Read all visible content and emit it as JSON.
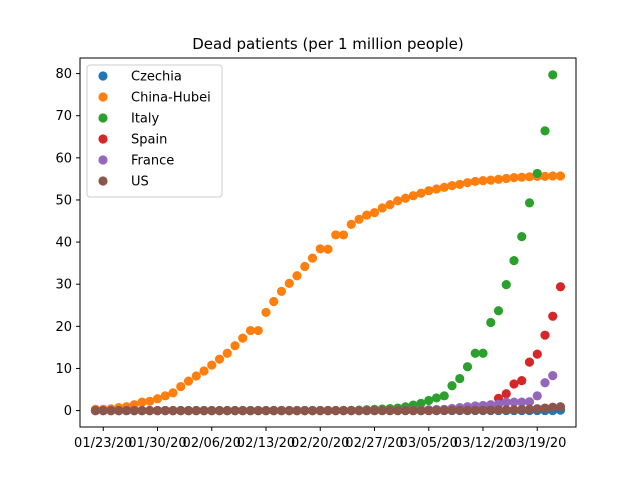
{
  "chart_data": {
    "type": "scatter",
    "title": "Dead patients (per 1 million people)",
    "xlabel": "",
    "ylabel": "",
    "grid": false,
    "legend_position": "top-left",
    "x_start": "2020-01-22",
    "x_tick_labels": [
      "01/23/20",
      "01/30/20",
      "02/06/20",
      "02/13/20",
      "02/20/20",
      "02/27/20",
      "03/05/20",
      "03/12/20",
      "03/19/20"
    ],
    "x_tick_dates": [
      "2020-01-23",
      "2020-01-30",
      "2020-02-06",
      "2020-02-13",
      "2020-02-20",
      "2020-02-27",
      "2020-03-05",
      "2020-03-12",
      "2020-03-19"
    ],
    "x_range": [
      "2020-01-20",
      "2020-03-24"
    ],
    "y_ticks": [
      0,
      10,
      20,
      30,
      40,
      50,
      60,
      70,
      80
    ],
    "ylim": [
      -3.9,
      83.7
    ],
    "series": [
      {
        "name": "Czechia",
        "color": "#1f77b4",
        "values": [
          0,
          0,
          0,
          0,
          0,
          0,
          0,
          0,
          0,
          0,
          0,
          0,
          0,
          0,
          0,
          0,
          0,
          0,
          0,
          0,
          0,
          0,
          0,
          0,
          0,
          0,
          0,
          0,
          0,
          0,
          0,
          0,
          0,
          0,
          0,
          0,
          0,
          0,
          0,
          0,
          0,
          0,
          0,
          0,
          0,
          0,
          0,
          0,
          0,
          0,
          0,
          0,
          0,
          0,
          0,
          0,
          0,
          0,
          0,
          0,
          0.1
        ]
      },
      {
        "name": "China-Hubei",
        "color": "#ff7f0e",
        "values": [
          0.3,
          0.3,
          0.4,
          0.7,
          0.9,
          1.4,
          2,
          2.2,
          2.8,
          3.5,
          4.2,
          5.7,
          7,
          8.2,
          9.4,
          10.8,
          12.2,
          13.6,
          15.4,
          17.2,
          19,
          19,
          23.3,
          25.9,
          28.3,
          30.2,
          32,
          34.2,
          36.2,
          38.4,
          38.3,
          41.7,
          41.7,
          44.2,
          45.4,
          46.4,
          47,
          48.1,
          48.9,
          49.8,
          50.4,
          51,
          51.6,
          52.2,
          52.6,
          53,
          53.4,
          53.7,
          54.1,
          54.4,
          54.6,
          54.7,
          54.9,
          55.1,
          55.3,
          55.4,
          55.5,
          55.6,
          55.6,
          55.7,
          55.7
        ]
      },
      {
        "name": "Italy",
        "color": "#2ca02c",
        "values": [
          0,
          0,
          0,
          0,
          0,
          0,
          0,
          0,
          0,
          0,
          0,
          0,
          0,
          0,
          0,
          0,
          0,
          0,
          0,
          0,
          0,
          0,
          0,
          0,
          0,
          0,
          0,
          0,
          0,
          0,
          0,
          0,
          0.03,
          0.05,
          0.12,
          0.2,
          0.28,
          0.35,
          0.48,
          0.58,
          0.87,
          1.3,
          1.7,
          2.4,
          3.0,
          3.5,
          5.9,
          7.6,
          10.4,
          13.6,
          13.6,
          20.9,
          23.7,
          29.9,
          35.6,
          41.3,
          49.3,
          56.3,
          66.4,
          79.7
        ]
      },
      {
        "name": "Spain",
        "color": "#d62728",
        "values": [
          0,
          0,
          0,
          0,
          0,
          0,
          0,
          0,
          0,
          0,
          0,
          0,
          0,
          0,
          0,
          0,
          0,
          0,
          0,
          0,
          0,
          0,
          0,
          0,
          0,
          0,
          0,
          0,
          0,
          0,
          0,
          0,
          0,
          0,
          0,
          0,
          0,
          0,
          0,
          0,
          0,
          0,
          0,
          0,
          0.02,
          0.06,
          0.11,
          0.22,
          0.38,
          0.6,
          0.9,
          1.3,
          2.9,
          4.0,
          6.3,
          7.1,
          11.5,
          13.4,
          17.9,
          22.4,
          29.4
        ]
      },
      {
        "name": "France",
        "color": "#9467bd",
        "values": [
          0,
          0,
          0,
          0,
          0,
          0,
          0,
          0,
          0,
          0,
          0,
          0,
          0,
          0,
          0,
          0,
          0,
          0,
          0,
          0,
          0,
          0,
          0,
          0.02,
          0.02,
          0.02,
          0.02,
          0.02,
          0.02,
          0.02,
          0.02,
          0.02,
          0.02,
          0.02,
          0.02,
          0.03,
          0.03,
          0.03,
          0.05,
          0.05,
          0.1,
          0.1,
          0.15,
          0.2,
          0.25,
          0.3,
          0.5,
          0.7,
          0.9,
          1.1,
          1.2,
          1.4,
          1.5,
          2.0,
          2.0,
          2.0,
          2.1,
          3.5,
          6.6,
          8.3
        ]
      },
      {
        "name": "US",
        "color": "#8c564b",
        "values": [
          0,
          0,
          0,
          0,
          0,
          0,
          0,
          0,
          0,
          0,
          0,
          0,
          0,
          0,
          0,
          0,
          0,
          0,
          0,
          0,
          0,
          0,
          0,
          0,
          0,
          0,
          0,
          0,
          0,
          0,
          0,
          0,
          0,
          0,
          0,
          0,
          0,
          0,
          0,
          0,
          0.01,
          0.01,
          0.02,
          0.03,
          0.03,
          0.04,
          0.04,
          0.05,
          0.06,
          0.08,
          0.09,
          0.12,
          0.14,
          0.17,
          0.2,
          0.26,
          0.32,
          0.45,
          0.6,
          0.8,
          0.9
        ]
      }
    ]
  }
}
